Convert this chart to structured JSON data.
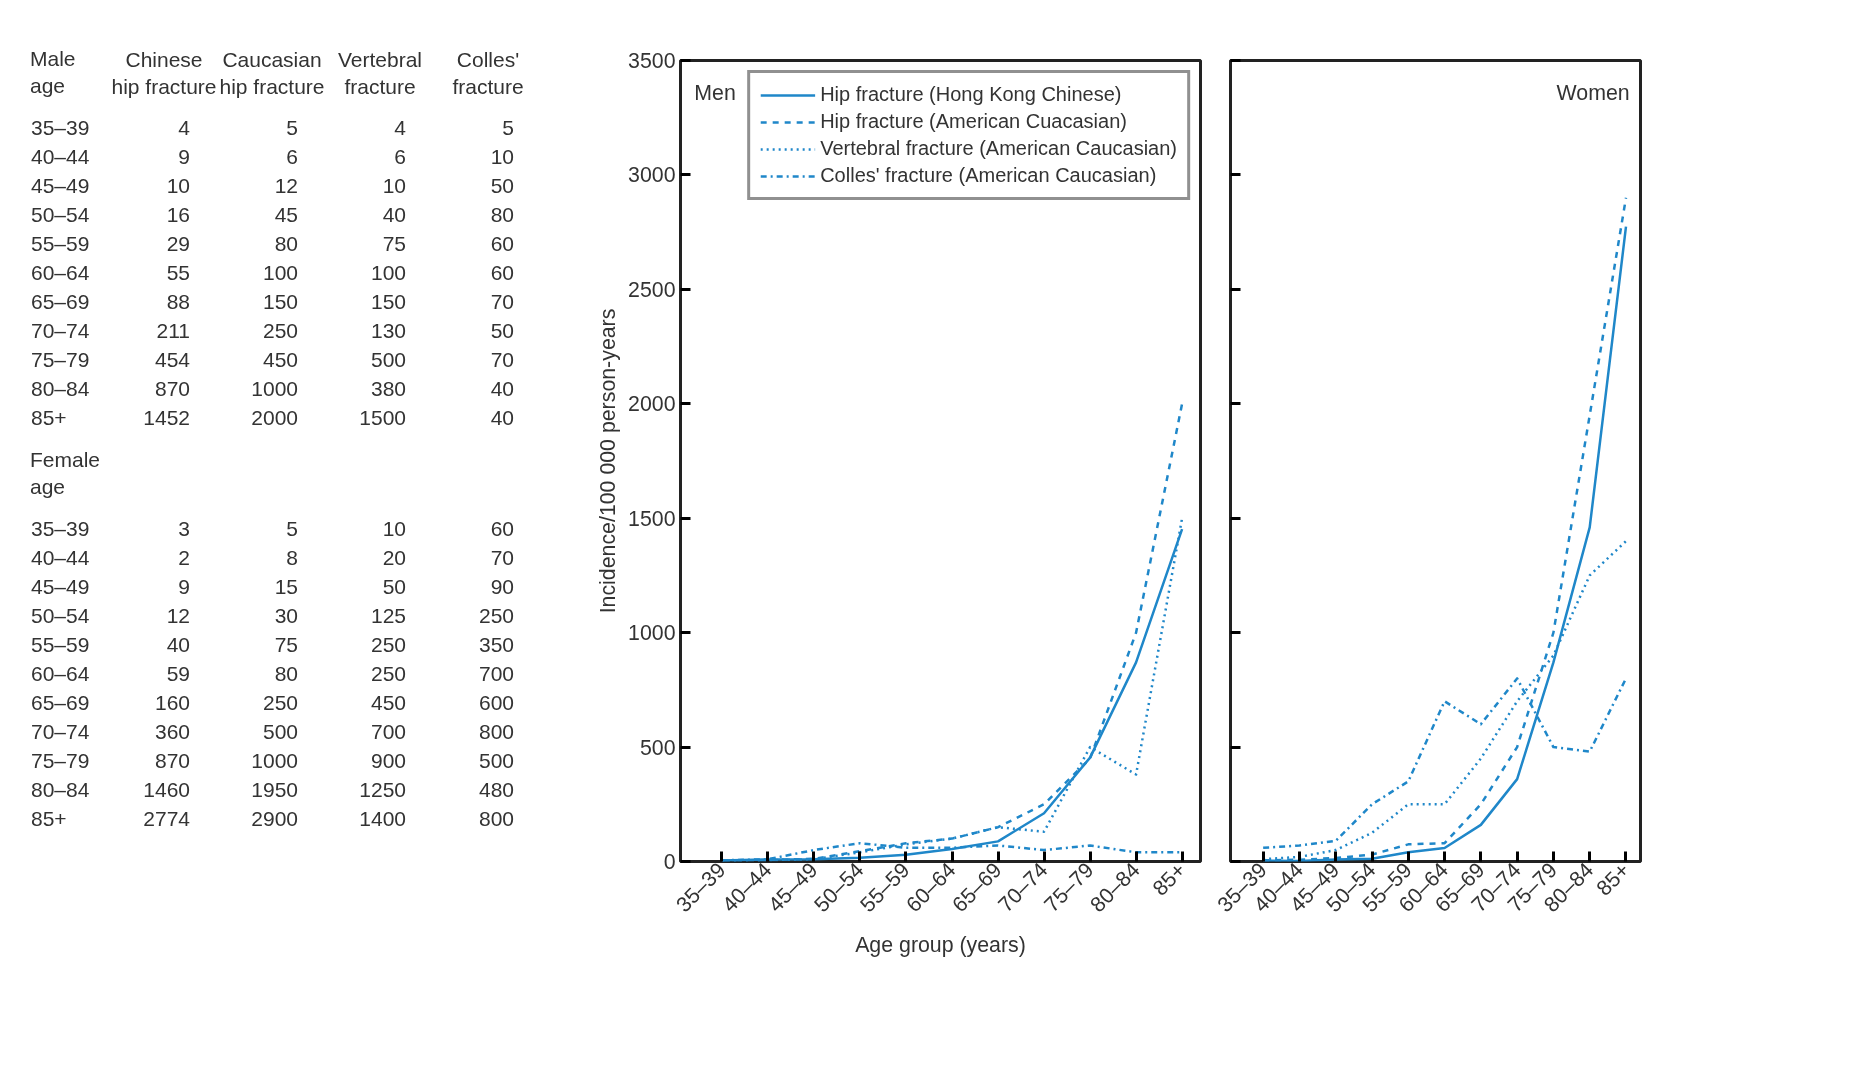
{
  "chart_data": [
    {
      "type": "other",
      "title": "Male age",
      "data_labels": true,
      "categories": [
        "35–39",
        "40–44",
        "45–49",
        "50–54",
        "55–59",
        "60–64",
        "65–69",
        "70–74",
        "75–79",
        "80–84",
        "85+"
      ],
      "series": [
        {
          "name": "Chinese hip fracture",
          "values": [
            4,
            9,
            10,
            16,
            29,
            55,
            88,
            211,
            454,
            870,
            1452
          ]
        },
        {
          "name": "Caucasian hip fracture",
          "values": [
            5,
            6,
            12,
            45,
            80,
            100,
            150,
            250,
            450,
            1000,
            2000
          ]
        },
        {
          "name": "Vertebral fracture",
          "values": [
            4,
            6,
            10,
            40,
            75,
            100,
            150,
            130,
            500,
            380,
            1500
          ]
        },
        {
          "name": "Colles' fracture",
          "values": [
            5,
            10,
            50,
            80,
            60,
            60,
            70,
            50,
            70,
            40,
            40
          ]
        }
      ]
    },
    {
      "type": "other",
      "title": "Female age",
      "data_labels": true,
      "categories": [
        "35–39",
        "40–44",
        "45–49",
        "50–54",
        "55–59",
        "60–64",
        "65–69",
        "70–74",
        "75–79",
        "80–84",
        "85+"
      ],
      "series": [
        {
          "values": [
            3,
            2,
            9,
            12,
            40,
            59,
            160,
            360,
            870,
            1460,
            2774
          ]
        },
        {
          "values": [
            5,
            8,
            15,
            30,
            75,
            80,
            250,
            500,
            1000,
            1950,
            2900
          ]
        },
        {
          "values": [
            10,
            20,
            50,
            125,
            250,
            250,
            450,
            700,
            900,
            1250,
            1400
          ]
        },
        {
          "values": [
            60,
            70,
            90,
            250,
            350,
            700,
            600,
            800,
            500,
            480,
            800
          ]
        }
      ]
    },
    {
      "type": "line",
      "title": "Men",
      "xlabel": "Age group (years)",
      "ylabel": "Incidence/100 000 person-years",
      "categories": [
        "35–39",
        "40–44",
        "45–49",
        "50–54",
        "55–59",
        "60–64",
        "65–69",
        "70–74",
        "75–79",
        "80–84",
        "85+"
      ],
      "ylim": [
        0,
        3500
      ],
      "yticks": [
        0,
        500,
        1000,
        1500,
        2000,
        2500,
        3000,
        3500
      ],
      "legend": "top right",
      "series": [
        {
          "name": "Hip fracture (Hong Kong Chinese)",
          "color": "#1f87c9",
          "line_style": "solid",
          "values": [
            4,
            9,
            10,
            16,
            29,
            55,
            88,
            211,
            454,
            870,
            1452
          ]
        },
        {
          "name": "Hip fracture (American Cuacasian)",
          "color": "#1f87c9",
          "line_style": "dashed",
          "values": [
            5,
            6,
            12,
            45,
            80,
            100,
            150,
            250,
            450,
            1000,
            2000
          ]
        },
        {
          "name": "Vertebral fracture (American Caucasian)",
          "color": "#1f87c9",
          "line_style": "dotted",
          "values": [
            4,
            6,
            10,
            40,
            75,
            100,
            150,
            130,
            500,
            380,
            1500
          ]
        },
        {
          "name": "Colles' fracture (American Caucasian)",
          "color": "#1f87c9",
          "line_style": "dashdot",
          "values": [
            5,
            10,
            50,
            80,
            60,
            60,
            70,
            50,
            70,
            40,
            40
          ]
        }
      ]
    },
    {
      "type": "line",
      "title": "Women",
      "categories": [
        "35–39",
        "40–44",
        "45–49",
        "50–54",
        "55–59",
        "60–64",
        "65–69",
        "70–74",
        "75–79",
        "80–84",
        "85+"
      ],
      "ylim": [
        0,
        3500
      ],
      "yticks": [
        0,
        500,
        1000,
        1500,
        2000,
        2500,
        3000,
        3500
      ],
      "tick_labels": "x",
      "series": [
        {
          "color": "#1f87c9",
          "line_style": "solid",
          "values": [
            3,
            2,
            9,
            12,
            40,
            59,
            160,
            360,
            870,
            1460,
            2774
          ]
        },
        {
          "color": "#1f87c9",
          "line_style": "dashed",
          "values": [
            5,
            8,
            15,
            30,
            75,
            80,
            250,
            500,
            1000,
            1950,
            2900
          ]
        },
        {
          "color": "#1f87c9",
          "line_style": "dotted",
          "values": [
            10,
            20,
            50,
            125,
            250,
            250,
            450,
            700,
            900,
            1250,
            1400
          ]
        },
        {
          "color": "#1f87c9",
          "line_style": "dashdot",
          "values": [
            60,
            70,
            90,
            250,
            350,
            700,
            600,
            800,
            500,
            480,
            800
          ]
        }
      ]
    }
  ]
}
